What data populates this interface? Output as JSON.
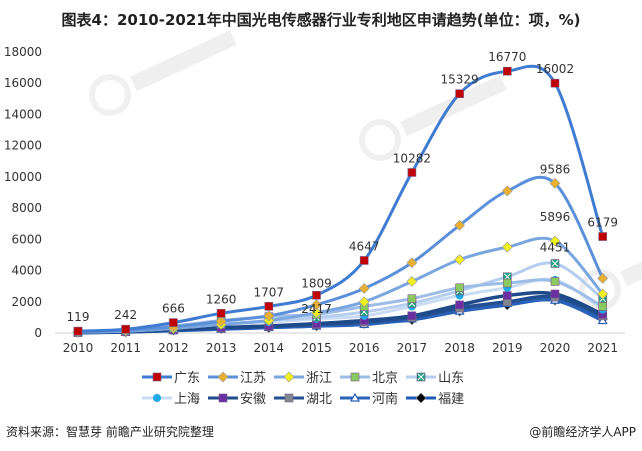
{
  "title": "图表4：2010-2021年中国光电传感器行业专利地区申请趋势(单位：项，%)",
  "source": "资料来源：智慧芽 前瞻产业研究院整理",
  "brand": "@前瞻经济学人APP",
  "watermark": "前瞻产业研究院",
  "chart_data": {
    "type": "line",
    "title": "图表4：2010-2021年中国光电传感器行业专利地区申请趋势(单位：项，%)",
    "x": [
      "2010",
      "2011",
      "2012",
      "2013",
      "2014",
      "2015",
      "2016",
      "2017",
      "2018",
      "2019",
      "2020",
      "2021"
    ],
    "ylim": [
      0,
      18000
    ],
    "yticks": [
      0,
      2000,
      4000,
      6000,
      8000,
      10000,
      12000,
      14000,
      16000,
      18000
    ],
    "grid": false,
    "legend_position": "bottom",
    "series": [
      {
        "name": "广东",
        "color": "#3F7BD0",
        "marker": "square",
        "marker_color": "#C00000",
        "values": [
          119,
          242,
          666,
          1260,
          1707,
          2417,
          4647,
          10282,
          15329,
          16770,
          16002,
          6179
        ]
      },
      {
        "name": "江苏",
        "color": "#5B8FD9",
        "marker": "diamond",
        "marker_color": "#E8B030",
        "values": [
          80,
          180,
          400,
          750,
          1100,
          1809,
          2850,
          4500,
          6900,
          9100,
          9586,
          3500
        ]
      },
      {
        "name": "浙江",
        "color": "#7AA6E0",
        "marker": "diamond",
        "marker_color": "#F0F020",
        "values": [
          60,
          130,
          300,
          550,
          800,
          1300,
          2000,
          3300,
          4700,
          5500,
          5896,
          2500
        ]
      },
      {
        "name": "北京",
        "color": "#9DBCE8",
        "marker": "square",
        "marker_color": "#8CC860",
        "values": [
          100,
          200,
          450,
          800,
          1050,
          1200,
          1700,
          2200,
          2900,
          3200,
          3300,
          1700
        ]
      },
      {
        "name": "山东",
        "color": "#B5CDEE",
        "marker": "xsquare",
        "marker_color": "#20A080",
        "values": [
          50,
          120,
          300,
          550,
          800,
          1000,
          1350,
          1900,
          2700,
          3600,
          4451,
          2200
        ]
      },
      {
        "name": "上海",
        "color": "#CADCF3",
        "marker": "circle",
        "marker_color": "#20A8E8",
        "values": [
          70,
          150,
          350,
          550,
          700,
          900,
          1100,
          1700,
          2400,
          2900,
          3400,
          1500
        ]
      },
      {
        "name": "安徽",
        "color": "#1F4A8A",
        "marker": "square",
        "marker_color": "#6A2FA0",
        "values": [
          30,
          80,
          200,
          350,
          450,
          600,
          800,
          1100,
          1800,
          2400,
          2500,
          1200
        ]
      },
      {
        "name": "湖北",
        "color": "#234E90",
        "marker": "square",
        "marker_color": "#808890",
        "values": [
          40,
          90,
          200,
          320,
          420,
          550,
          700,
          1000,
          1600,
          2000,
          2300,
          1100
        ]
      },
      {
        "name": "河南",
        "color": "#2A62B8",
        "marker": "triangle",
        "marker_color": "#FFFFFF",
        "values": [
          20,
          60,
          150,
          250,
          350,
          450,
          550,
          900,
          1400,
          1900,
          2100,
          800
        ]
      },
      {
        "name": "福建",
        "color": "#1E5BB8",
        "marker": "diamond",
        "marker_color": "#000000",
        "values": [
          30,
          70,
          180,
          280,
          350,
          450,
          600,
          850,
          1400,
          1800,
          2100,
          900
        ]
      }
    ],
    "annotations": [
      {
        "x": "2010",
        "label": "119"
      },
      {
        "x": "2011",
        "label": "242"
      },
      {
        "x": "2012",
        "label": "666"
      },
      {
        "x": "2013",
        "label": "1260"
      },
      {
        "x": "2014",
        "label": "1707"
      },
      {
        "x": "2015",
        "label": "1809"
      },
      {
        "x": "2015",
        "label": "2417"
      },
      {
        "x": "2016",
        "label": "4647"
      },
      {
        "x": "2017",
        "label": "10282"
      },
      {
        "x": "2018",
        "label": "15329"
      },
      {
        "x": "2019",
        "label": "16770"
      },
      {
        "x": "2020",
        "label": "16002"
      },
      {
        "x": "2020",
        "label": "9586"
      },
      {
        "x": "2020",
        "label": "5896"
      },
      {
        "x": "2020",
        "label": "4451"
      },
      {
        "x": "2021",
        "label": "6179"
      }
    ]
  }
}
